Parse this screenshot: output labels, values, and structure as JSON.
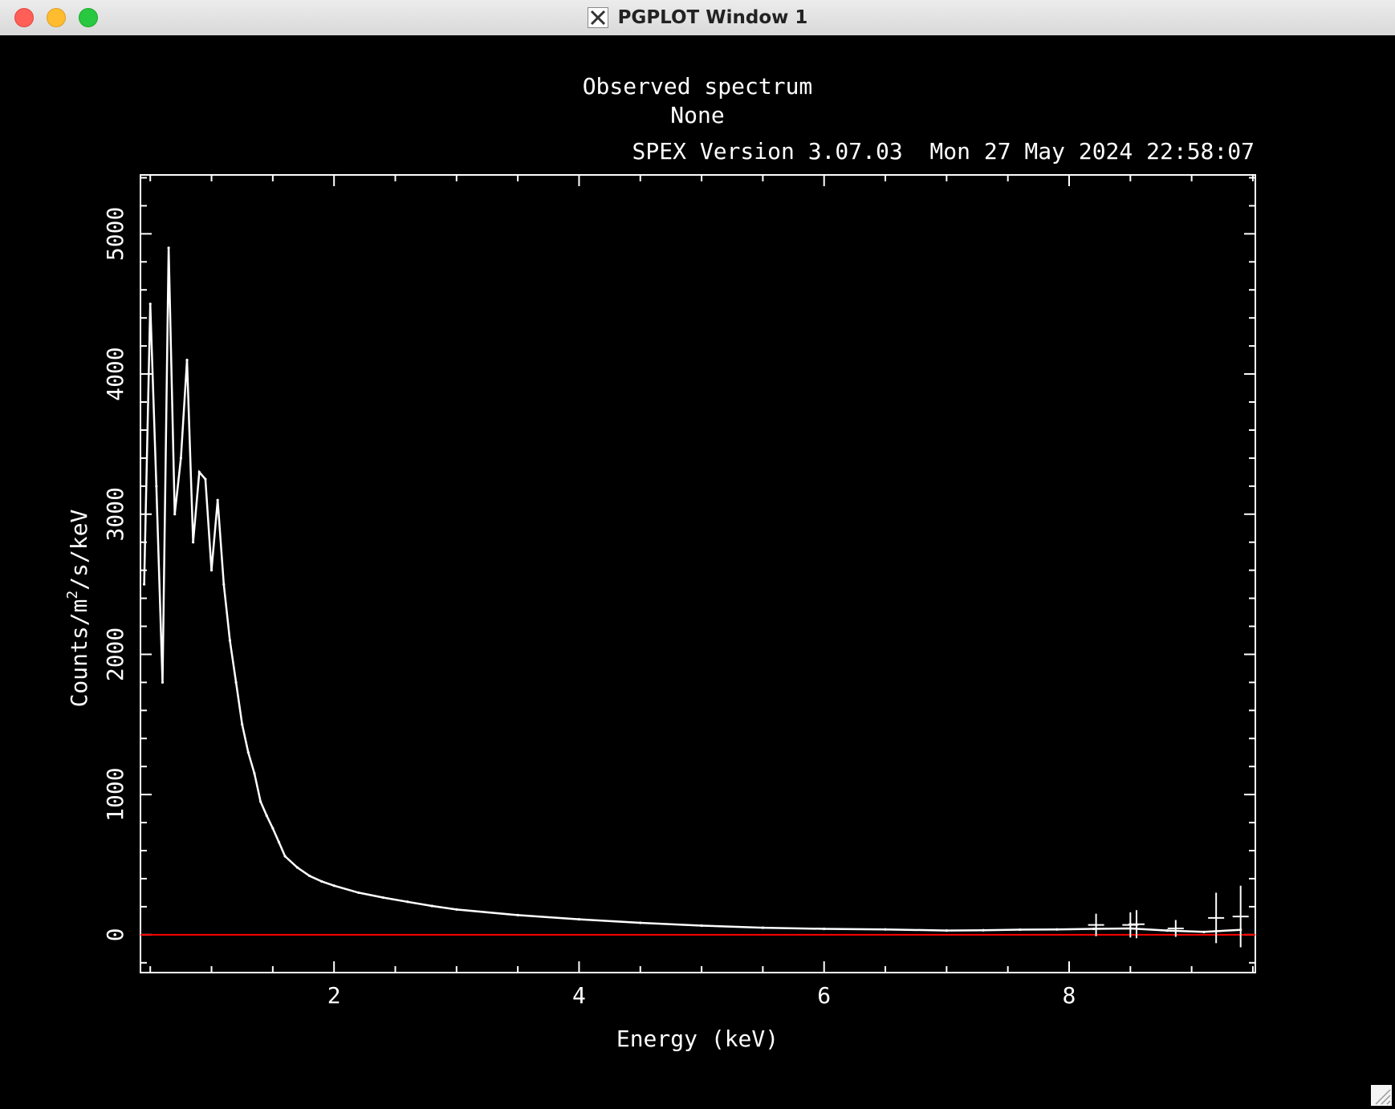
{
  "window": {
    "title": "PGPLOT Window 1",
    "title_icon": "x11-icon",
    "controls": [
      "close-button",
      "minimize-button",
      "zoom-button"
    ]
  },
  "chart_data": {
    "type": "line",
    "title": "Observed spectrum",
    "subtitle": "None",
    "annotation": "SPEX Version 3.07.03  Mon 27 May 2024 22:58:07",
    "xlabel": "Energy (keV)",
    "ylabel": "Counts/m",
    "ylabel_superscript": "2",
    "ylabel_suffix": "/s/keV",
    "xlim": [
      0.42,
      9.52
    ],
    "ylim": [
      -270,
      5420
    ],
    "xticks": [
      2,
      4,
      6,
      8
    ],
    "yticks": [
      0,
      1000,
      2000,
      3000,
      4000,
      5000
    ],
    "xtick_labels": [
      "2",
      "4",
      "6",
      "8"
    ],
    "ytick_labels": [
      "0",
      "1000",
      "2000",
      "3000",
      "4000",
      "5000"
    ],
    "grid": false,
    "colors": {
      "background": "#000000",
      "data": "#ffffff",
      "zero_line": "#ff0000",
      "model": "#0000ff"
    },
    "series": [
      {
        "role": "observed",
        "x": [
          0.45,
          0.5,
          0.55,
          0.6,
          0.65,
          0.7,
          0.75,
          0.8,
          0.85,
          0.9,
          0.95,
          1.0,
          1.05,
          1.1,
          1.15,
          1.2,
          1.25,
          1.3,
          1.35,
          1.4,
          1.45,
          1.5,
          1.55,
          1.6,
          1.7,
          1.8,
          1.9,
          2.0,
          2.2,
          2.4,
          2.6,
          2.8,
          3.0,
          3.5,
          4.0,
          4.5,
          5.0,
          5.5,
          6.0,
          6.5,
          7.0,
          7.3,
          7.6,
          7.9,
          8.2,
          8.5,
          8.8,
          9.1,
          9.4
        ],
        "y": [
          2500,
          4500,
          3200,
          1800,
          4900,
          3000,
          3400,
          4100,
          2800,
          3300,
          3250,
          2600,
          3100,
          2500,
          2100,
          1800,
          1500,
          1300,
          1150,
          950,
          850,
          760,
          660,
          560,
          480,
          420,
          380,
          350,
          300,
          265,
          235,
          205,
          180,
          140,
          110,
          85,
          65,
          50,
          42,
          38,
          30,
          32,
          36,
          38,
          42,
          45,
          30,
          20,
          35
        ]
      }
    ],
    "error_bars": [
      {
        "x": 8.22,
        "y": 70,
        "yerr": 80
      },
      {
        "x": 8.5,
        "y": 70,
        "yerr": 90
      },
      {
        "x": 8.55,
        "y": 75,
        "yerr": 100
      },
      {
        "x": 8.87,
        "y": 45,
        "yerr": 60
      },
      {
        "x": 9.2,
        "y": 120,
        "yerr": 180
      },
      {
        "x": 9.4,
        "y": 130,
        "yerr": 220
      }
    ]
  }
}
